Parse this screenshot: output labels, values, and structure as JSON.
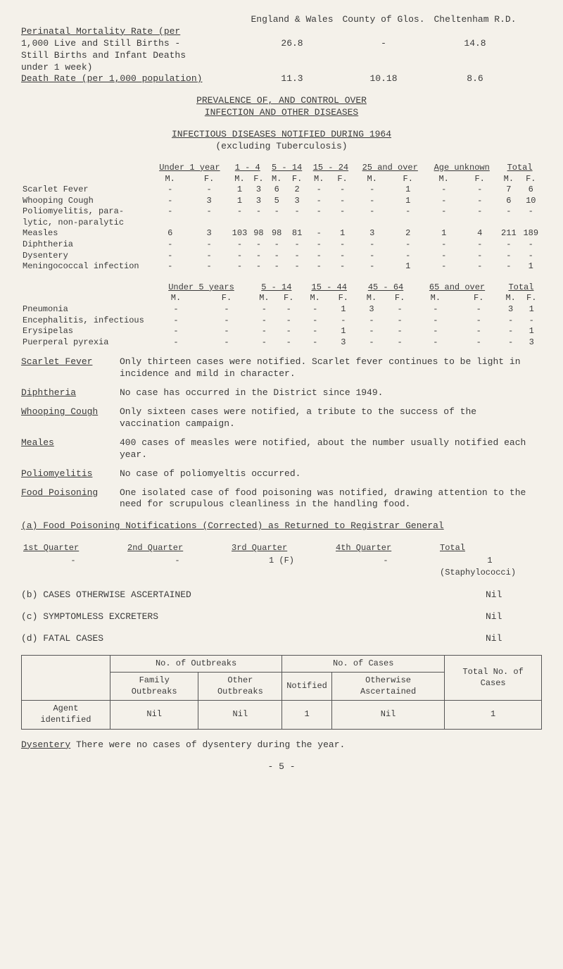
{
  "header": {
    "col1": "England & Wales",
    "col2": "County of Glos.",
    "col3": "Cheltenham R.D.",
    "rows": [
      {
        "label": "Perinatal Mortality Rate (per",
        "uline": true
      },
      {
        "label": "1,000 Live and Still Births -",
        "v1": "26.8",
        "v2": "-",
        "v3": "14.8"
      },
      {
        "label": "Still Births and Infant Deaths"
      },
      {
        "label": "under 1 week)"
      },
      {
        "label": "Death Rate (per 1,000 population)",
        "uline": true,
        "v1": "11.3",
        "v2": "10.18",
        "v3": "8.6"
      }
    ]
  },
  "title1": "PREVALENCE OF, AND CONTROL OVER",
  "title2": "INFECTION AND OTHER DISEASES",
  "title3": "INFECTIOUS DISEASES NOTIFIED DURING 1964",
  "title4": "(excluding Tuberculosis)",
  "table1": {
    "age_groups": [
      "Under 1 year",
      "1 - 4",
      "5 - 14",
      "15 - 24",
      "25 and over",
      "Age unknown",
      "Total"
    ],
    "mf": [
      "M.",
      "F.",
      "M.",
      "F.",
      "M.",
      "F.",
      "M.",
      "F.",
      "M.",
      "F.",
      "M.",
      "F.",
      "M.",
      "F."
    ],
    "rows": [
      {
        "name": "Scarlet Fever",
        "cells": [
          "-",
          "-",
          "1",
          "3",
          "6",
          "2",
          "-",
          "-",
          "-",
          "1",
          "-",
          "-",
          "7",
          "6"
        ]
      },
      {
        "name": "Whooping Cough",
        "cells": [
          "-",
          "3",
          "1",
          "3",
          "5",
          "3",
          "-",
          "-",
          "-",
          "1",
          "-",
          "-",
          "6",
          "10"
        ]
      },
      {
        "name": "Poliomyelitis, para-",
        "cells": [
          "-",
          "-",
          "-",
          "-",
          "-",
          "-",
          "-",
          "-",
          "-",
          "-",
          "-",
          "-",
          "-",
          "-"
        ]
      },
      {
        "name": "lytic, non-paralytic",
        "cells": [
          "",
          "",
          "",
          "",
          "",
          "",
          "",
          "",
          "",
          "",
          "",
          "",
          "",
          ""
        ]
      },
      {
        "name": "Measles",
        "cells": [
          "6",
          "3",
          "103",
          "98",
          "98",
          "81",
          "-",
          "1",
          "3",
          "2",
          "1",
          "4",
          "211",
          "189"
        ]
      },
      {
        "name": "Diphtheria",
        "cells": [
          "-",
          "-",
          "-",
          "-",
          "-",
          "-",
          "-",
          "-",
          "-",
          "-",
          "-",
          "-",
          "-",
          "-"
        ]
      },
      {
        "name": "Dysentery",
        "cells": [
          "-",
          "-",
          "-",
          "-",
          "-",
          "-",
          "-",
          "-",
          "-",
          "-",
          "-",
          "-",
          "-",
          "-"
        ]
      },
      {
        "name": "Meningococcal infection",
        "cells": [
          "-",
          "-",
          "-",
          "-",
          "-",
          "-",
          "-",
          "-",
          "-",
          "1",
          "-",
          "-",
          "-",
          "1"
        ]
      }
    ]
  },
  "table2": {
    "age_groups": [
      "Under 5 years",
      "5 - 14",
      "15 - 44",
      "45 - 64",
      "65 and over",
      "Total"
    ],
    "mf": [
      "M.",
      "F.",
      "M.",
      "F.",
      "M.",
      "F.",
      "M.",
      "F.",
      "M.",
      "F.",
      "M.",
      "F."
    ],
    "rows": [
      {
        "name": "Pneumonia",
        "cells": [
          "-",
          "-",
          "-",
          "-",
          "-",
          "1",
          "3",
          "-",
          "-",
          "-",
          "3",
          "1"
        ]
      },
      {
        "name": "Encephalitis, infectious",
        "cells": [
          "-",
          "-",
          "-",
          "-",
          "-",
          "-",
          "-",
          "-",
          "-",
          "-",
          "-",
          "-"
        ]
      },
      {
        "name": "Erysipelas",
        "cells": [
          "-",
          "-",
          "-",
          "-",
          "-",
          "1",
          "-",
          "-",
          "-",
          "-",
          "-",
          "1"
        ]
      },
      {
        "name": "Puerperal pyrexia",
        "cells": [
          "-",
          "-",
          "-",
          "-",
          "-",
          "3",
          "-",
          "-",
          "-",
          "-",
          "-",
          "3"
        ]
      }
    ]
  },
  "notes": [
    {
      "label": "Scarlet Fever",
      "desc": "Only thirteen cases were notified. Scarlet fever continues to be light in incidence and mild in character."
    },
    {
      "label": "Diphtheria",
      "desc": "No case has occurred in the District since 1949."
    },
    {
      "label": "Whooping Cough",
      "desc": "Only sixteen cases were notified, a tribute to the success of the vaccination campaign."
    },
    {
      "label": "Meales",
      "desc": "400 cases of measles were notified, about the number usually notified each year."
    },
    {
      "label": "Poliomyelitis",
      "desc": "No case of poliomyeltis occurred."
    },
    {
      "label": "Food Poisoning",
      "desc": "One isolated case of food poisoning was notified, drawing attention to the need for scrupulous cleanliness in the handling food."
    }
  ],
  "sectionA": {
    "title": "(a) Food Poisoning Notifications (Corrected) as Returned to Registrar General",
    "headers": [
      "1st Quarter",
      "2nd Quarter",
      "3rd Quarter",
      "4th Quarter",
      "Total"
    ],
    "values": [
      "-",
      "-",
      "1 (F)",
      "-",
      "1"
    ],
    "note": "(Staphylococci)"
  },
  "sectionB": {
    "label": "(b) CASES OTHERWISE ASCERTAINED",
    "value": "Nil"
  },
  "sectionC": {
    "label": "(c) SYMPTOMLESS EXCRETERS",
    "value": "Nil"
  },
  "sectionD": {
    "label": "(d) FATAL CASES",
    "value": "Nil"
  },
  "outbreak": {
    "h1": "No. of Outbreaks",
    "h2": "No. of Cases",
    "h3": "Total No. of Cases",
    "sub": [
      "Family Outbreaks",
      "Other Outbreaks",
      "Notified",
      "Otherwise Ascertained"
    ],
    "row_label": "Agent identified",
    "row_vals": [
      "Nil",
      "Nil",
      "1",
      "Nil",
      "1"
    ]
  },
  "footer": {
    "label": "Dysentery",
    "text": "There were no cases of dysentery during the year.",
    "page": "- 5 -"
  }
}
